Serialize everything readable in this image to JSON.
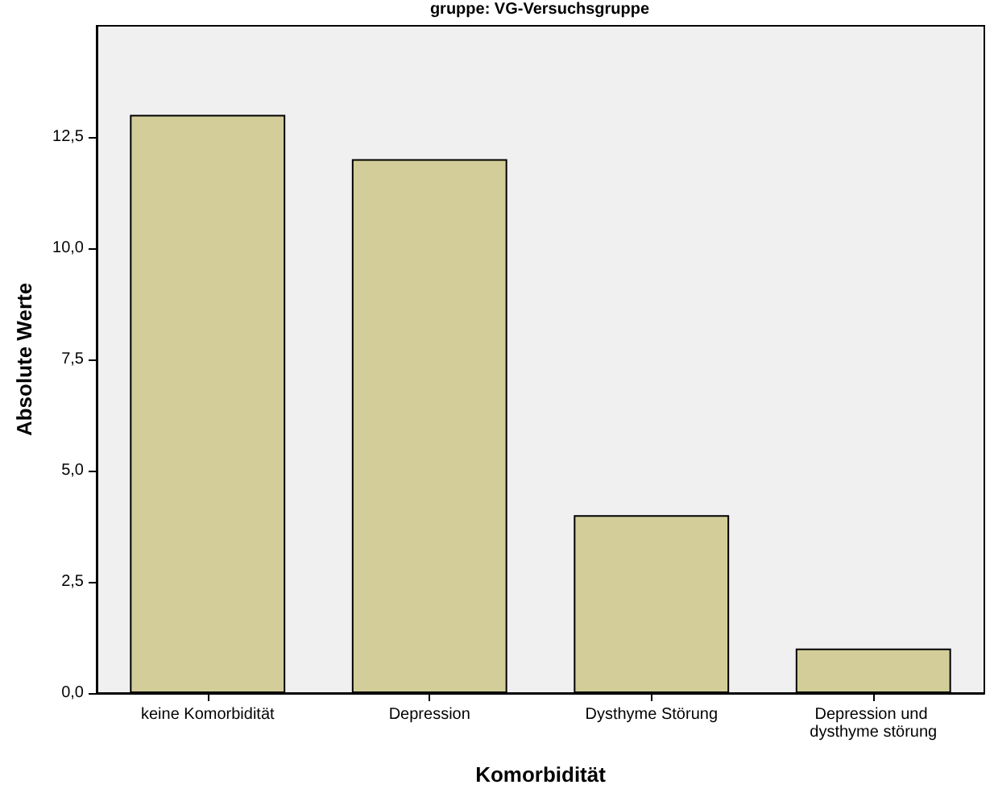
{
  "chart_data": {
    "type": "bar",
    "title": "gruppe: VG-Versuchsgruppe",
    "xlabel": "Komorbidität",
    "ylabel": "Absolute Werte",
    "categories": [
      "keine Komorbidität",
      "Depression",
      "Dysthyme Störung",
      "Depression und dysthyme störung"
    ],
    "values": [
      13,
      12,
      4,
      1
    ],
    "color": "#d3ce99",
    "ylim": [
      0,
      15
    ],
    "yticks": [
      {
        "value": 0,
        "label": "0,0"
      },
      {
        "value": 2.5,
        "label": "2,5"
      },
      {
        "value": 5,
        "label": "5,0"
      },
      {
        "value": 7.5,
        "label": "7,5"
      },
      {
        "value": 10,
        "label": "10,0"
      },
      {
        "value": 12.5,
        "label": "12,5"
      }
    ],
    "grid": false
  }
}
